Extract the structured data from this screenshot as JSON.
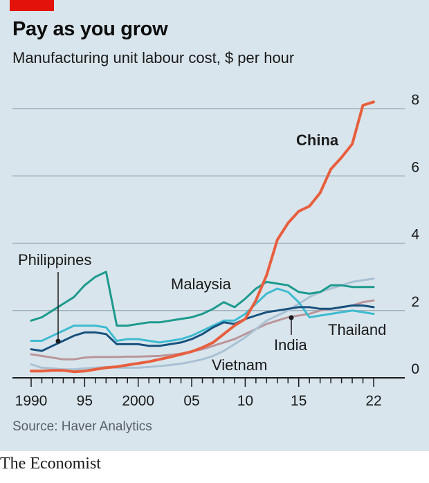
{
  "header": {
    "title": "Pay as you grow",
    "subtitle": "Manufacturing unit labour cost, $ per hour"
  },
  "footer": {
    "source": "Source: Haver Analytics",
    "publisher": "The Economist"
  },
  "colors": {
    "background": "#d9e5ec",
    "accent": "#e3120b",
    "grid": "#9fb1bc"
  },
  "chart_data": {
    "type": "line",
    "xlim": [
      1990,
      2022
    ],
    "ylim": [
      0,
      8
    ],
    "y_ticks": [
      0,
      2,
      4,
      6,
      8
    ],
    "x_tick_labels": [
      {
        "x": 1990,
        "label": "1990"
      },
      {
        "x": 1995,
        "label": "95"
      },
      {
        "x": 2000,
        "label": "2000"
      },
      {
        "x": 2005,
        "label": "05"
      },
      {
        "x": 2010,
        "label": "10"
      },
      {
        "x": 2015,
        "label": "15"
      },
      {
        "x": 2022,
        "label": "22"
      }
    ],
    "grid": true,
    "y_axis_side": "right",
    "x": [
      1990,
      1991,
      1992,
      1993,
      1994,
      1995,
      1996,
      1997,
      1998,
      1999,
      2000,
      2001,
      2002,
      2003,
      2004,
      2005,
      2006,
      2007,
      2008,
      2009,
      2010,
      2011,
      2012,
      2013,
      2014,
      2015,
      2016,
      2017,
      2018,
      2019,
      2020,
      2021,
      2022
    ],
    "series": [
      {
        "name": "India",
        "color": "#b9969a",
        "width": 3,
        "values": [
          0.7,
          0.65,
          0.6,
          0.55,
          0.55,
          0.6,
          0.62,
          0.62,
          0.62,
          0.63,
          0.63,
          0.64,
          0.65,
          0.68,
          0.72,
          0.78,
          0.85,
          0.95,
          1.05,
          1.15,
          1.3,
          1.45,
          1.6,
          1.7,
          1.8,
          1.85,
          1.9,
          2.0,
          2.05,
          2.1,
          2.15,
          2.25,
          2.3
        ]
      },
      {
        "name": "Vietnam",
        "color": "#a9c1d4",
        "width": 3,
        "values": [
          0.4,
          0.3,
          0.28,
          0.25,
          0.25,
          0.28,
          0.3,
          0.32,
          0.3,
          0.3,
          0.3,
          0.32,
          0.35,
          0.38,
          0.42,
          0.48,
          0.55,
          0.65,
          0.8,
          1.0,
          1.2,
          1.45,
          1.7,
          1.85,
          2.0,
          2.2,
          2.4,
          2.55,
          2.65,
          2.75,
          2.85,
          2.9,
          2.95
        ]
      },
      {
        "name": "Thailand",
        "color": "#3ebbd1",
        "width": 3,
        "values": [
          1.1,
          1.1,
          1.25,
          1.4,
          1.55,
          1.55,
          1.55,
          1.5,
          1.1,
          1.15,
          1.15,
          1.1,
          1.05,
          1.1,
          1.15,
          1.25,
          1.4,
          1.55,
          1.7,
          1.7,
          1.9,
          2.2,
          2.5,
          2.65,
          2.55,
          2.25,
          1.8,
          1.85,
          1.9,
          1.95,
          2.0,
          1.95,
          1.9
        ]
      },
      {
        "name": "Philippines",
        "color": "#17517e",
        "width": 3,
        "values": [
          0.85,
          0.8,
          0.95,
          1.1,
          1.25,
          1.35,
          1.35,
          1.3,
          1.0,
          1.0,
          1.0,
          0.95,
          0.95,
          1.0,
          1.05,
          1.15,
          1.3,
          1.5,
          1.65,
          1.6,
          1.75,
          1.85,
          1.95,
          2.0,
          2.05,
          2.1,
          2.1,
          2.05,
          2.05,
          2.1,
          2.15,
          2.15,
          2.1
        ]
      },
      {
        "name": "Malaysia",
        "color": "#1d9a8e",
        "width": 3,
        "values": [
          1.7,
          1.8,
          2.0,
          2.2,
          2.4,
          2.75,
          3.0,
          3.15,
          1.55,
          1.55,
          1.6,
          1.65,
          1.65,
          1.7,
          1.75,
          1.8,
          1.9,
          2.05,
          2.25,
          2.1,
          2.35,
          2.65,
          2.85,
          2.8,
          2.75,
          2.55,
          2.5,
          2.55,
          2.75,
          2.75,
          2.7,
          2.7,
          2.7
        ]
      },
      {
        "name": "China",
        "color": "#e75f3e",
        "width": 4,
        "values": [
          0.2,
          0.2,
          0.22,
          0.22,
          0.18,
          0.2,
          0.25,
          0.3,
          0.33,
          0.38,
          0.43,
          0.48,
          0.55,
          0.62,
          0.7,
          0.78,
          0.9,
          1.05,
          1.3,
          1.55,
          1.75,
          2.3,
          3.05,
          4.1,
          4.6,
          4.95,
          5.1,
          5.5,
          6.2,
          6.55,
          6.95,
          8.1,
          8.2
        ]
      }
    ],
    "labels": [
      {
        "series": "China",
        "text": "China",
        "bold": true
      },
      {
        "series": "Malaysia",
        "text": "Malaysia",
        "bold": false
      },
      {
        "series": "Philippines",
        "text": "Philippines",
        "bold": false
      },
      {
        "series": "Thailand",
        "text": "Thailand",
        "bold": false
      },
      {
        "series": "India",
        "text": "India",
        "bold": false
      },
      {
        "series": "Vietnam",
        "text": "Vietnam",
        "bold": false
      }
    ]
  }
}
